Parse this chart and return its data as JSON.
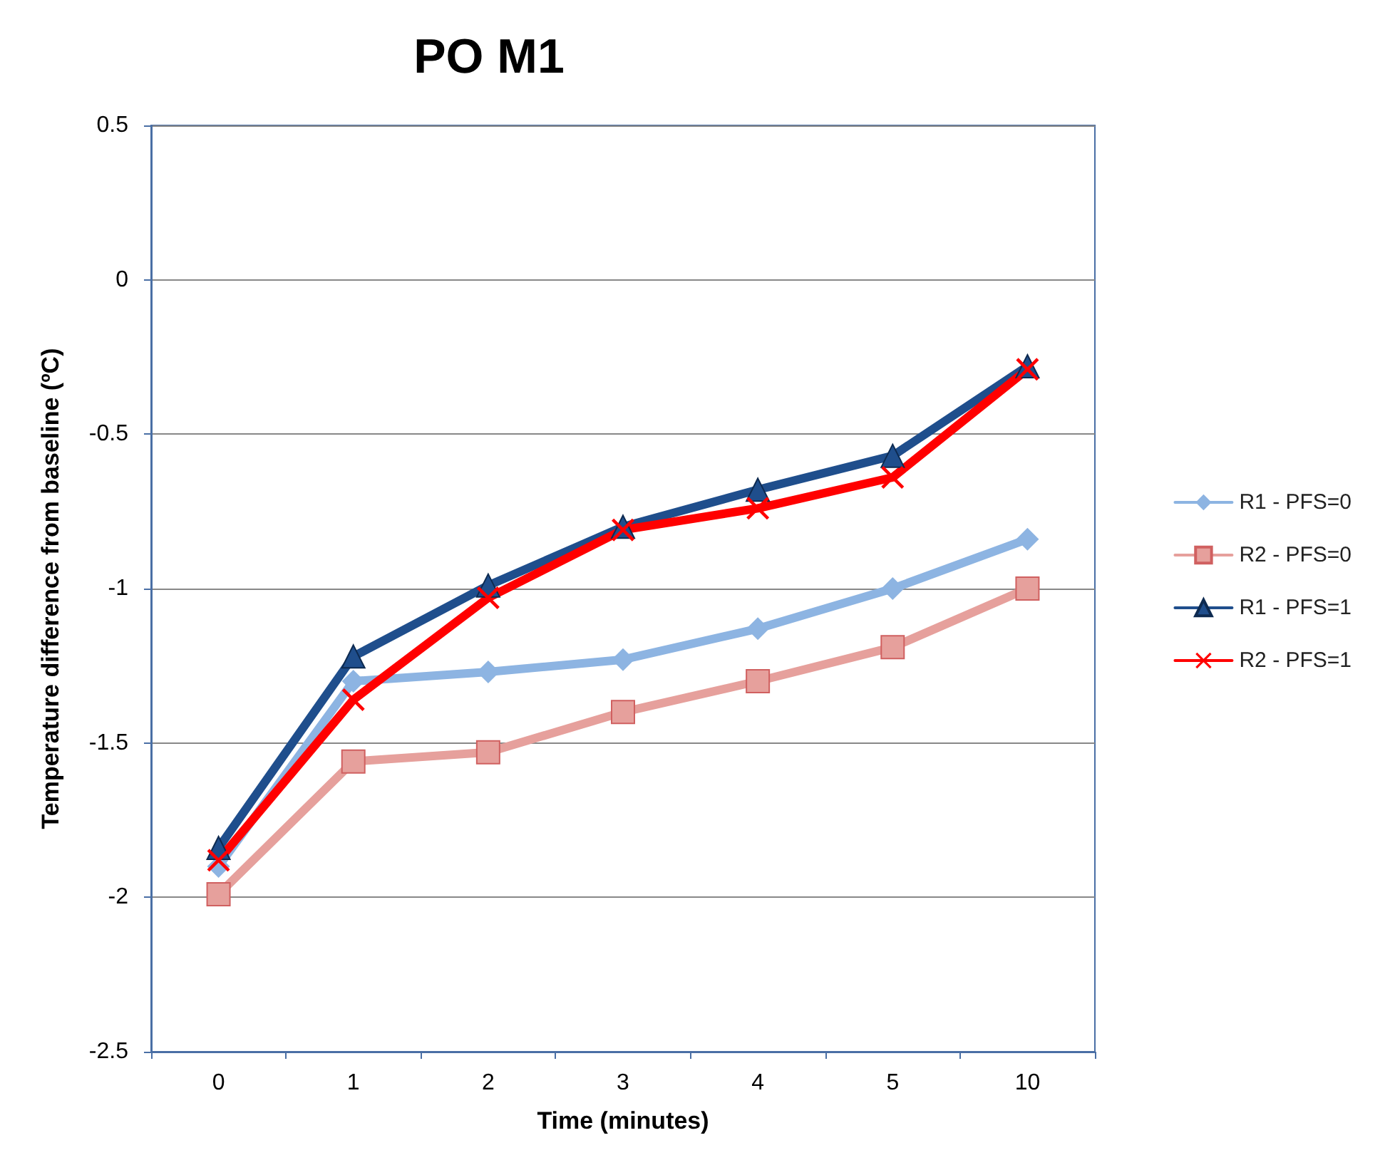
{
  "chart_data": {
    "type": "line",
    "title": "PO M1",
    "xlabel": "Time (minutes)",
    "ylabel": "Temperature difference from baseline (ºC)",
    "categories": [
      "0",
      "1",
      "2",
      "3",
      "4",
      "5",
      "10"
    ],
    "series": [
      {
        "name": "R1 - PFS=0",
        "color": "#8db4e2",
        "marker": "diamond",
        "values": [
          -1.9,
          -1.3,
          -1.27,
          -1.23,
          -1.13,
          -1.0,
          -0.84
        ]
      },
      {
        "name": "R2 - PFS=0",
        "color": "#e6a09c",
        "marker": "square",
        "values": [
          -1.99,
          -1.56,
          -1.53,
          -1.4,
          -1.3,
          -1.19,
          -1.0
        ]
      },
      {
        "name": "R1 - PFS=1",
        "color": "#1f4e8c",
        "marker": "triangle",
        "values": [
          -1.84,
          -1.22,
          -0.99,
          -0.8,
          -0.68,
          -0.57,
          -0.28
        ]
      },
      {
        "name": "R2 - PFS=1",
        "color": "#ff0000",
        "marker": "cross",
        "values": [
          -1.88,
          -1.36,
          -1.03,
          -0.81,
          -0.74,
          -0.64,
          -0.29
        ]
      }
    ],
    "ylim": [
      -2.5,
      0.5
    ],
    "yticks": [
      -2.5,
      -2,
      -1.5,
      -1,
      -0.5,
      0,
      0.5
    ],
    "grid": "y",
    "legend": "right"
  }
}
